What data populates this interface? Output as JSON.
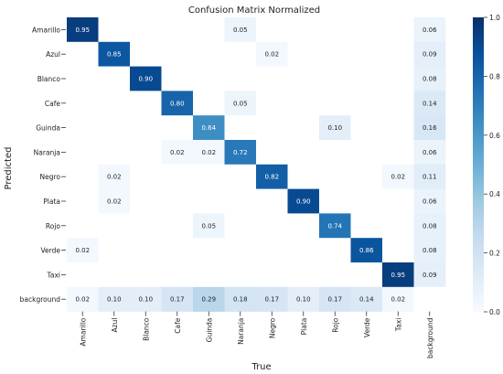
{
  "chart_data": {
    "type": "heatmap",
    "title": "Confusion Matrix Normalized",
    "xlabel": "True",
    "ylabel": "Predicted",
    "x_categories": [
      "Amarillo",
      "Azul",
      "Blanco",
      "Cafe",
      "Guinda",
      "Naranja",
      "Negro",
      "Plata",
      "Rojo",
      "Verde",
      "Taxi",
      "background"
    ],
    "y_categories": [
      "Amarillo",
      "Azul",
      "Blanco",
      "Cafe",
      "Guinda",
      "Naranja",
      "Negro",
      "Plata",
      "Rojo",
      "Verde",
      "Taxi",
      "background"
    ],
    "values": [
      [
        0.95,
        null,
        null,
        null,
        null,
        0.05,
        null,
        null,
        null,
        null,
        null,
        0.06
      ],
      [
        null,
        0.85,
        null,
        null,
        null,
        null,
        0.02,
        null,
        null,
        null,
        null,
        0.09
      ],
      [
        null,
        null,
        0.9,
        null,
        null,
        null,
        null,
        null,
        null,
        null,
        null,
        0.08
      ],
      [
        null,
        null,
        null,
        0.8,
        null,
        0.05,
        null,
        null,
        null,
        null,
        null,
        0.14
      ],
      [
        null,
        null,
        null,
        null,
        0.64,
        null,
        null,
        null,
        0.1,
        null,
        null,
        0.16
      ],
      [
        null,
        null,
        null,
        0.02,
        0.02,
        0.72,
        null,
        null,
        null,
        null,
        null,
        0.06
      ],
      [
        null,
        0.02,
        null,
        null,
        null,
        null,
        0.82,
        null,
        null,
        null,
        0.02,
        0.11
      ],
      [
        null,
        0.02,
        null,
        null,
        null,
        null,
        null,
        0.9,
        null,
        null,
        null,
        0.06
      ],
      [
        null,
        null,
        null,
        null,
        0.05,
        null,
        null,
        null,
        0.74,
        null,
        null,
        0.08
      ],
      [
        0.02,
        null,
        null,
        null,
        null,
        null,
        null,
        null,
        null,
        0.86,
        null,
        0.08
      ],
      [
        null,
        null,
        null,
        null,
        null,
        null,
        null,
        null,
        null,
        null,
        0.95,
        0.09
      ],
      [
        0.02,
        0.1,
        0.1,
        0.17,
        0.29,
        0.18,
        0.17,
        0.1,
        0.17,
        0.14,
        0.02,
        null
      ]
    ],
    "vmin": 0.0,
    "vmax": 1.0,
    "colorbar_ticks": [
      "0.0",
      "0.2",
      "0.4",
      "0.6",
      "0.8",
      "1.0"
    ],
    "colormap": "Blues",
    "low_color": "#f7fbff",
    "high_color": "#08306b"
  }
}
